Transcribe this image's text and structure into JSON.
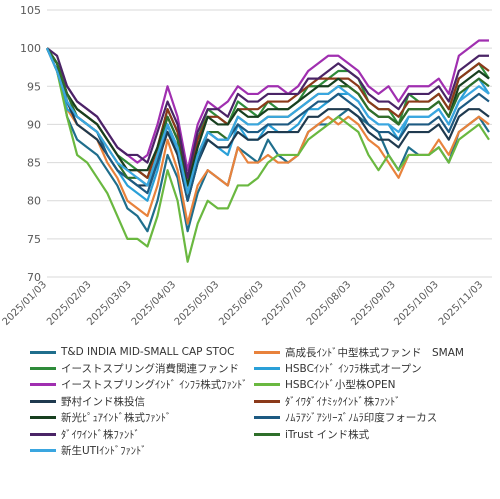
{
  "chart_data": {
    "type": "line",
    "title": "",
    "xlabel": "",
    "ylabel": "",
    "ylim": [
      70,
      105
    ],
    "yticks": [
      70,
      75,
      80,
      85,
      90,
      95,
      100,
      105
    ],
    "grid": "horizontal",
    "legend_position": "bottom",
    "x_tick_labels": [
      "2025/01/03",
      "2025/02/03",
      "2025/03/03",
      "2025/04/03",
      "2025/05/03",
      "2025/06/03",
      "2025/07/03",
      "2025/08/03",
      "2025/09/03",
      "2025/10/03",
      "2025/11/03"
    ],
    "x_tick_positions": [
      0,
      4.4286,
      8.4286,
      12.8571,
      17.1429,
      21.5714,
      25.8571,
      30.2857,
      34.7143,
      39.0,
      43.4286
    ],
    "x_range": [
      0,
      44.3
    ],
    "series": [
      {
        "name": "T&D INDIA MID-SMALL CAP STOC",
        "color": "#1f6e8c",
        "values": [
          100,
          98,
          91,
          88,
          87,
          86,
          84,
          82,
          79,
          78,
          76,
          80,
          86,
          83,
          76,
          81,
          84,
          83,
          82,
          87,
          86,
          85,
          88,
          86,
          85,
          86,
          89,
          90,
          90,
          91,
          92,
          91,
          90,
          89,
          86,
          84,
          87,
          86,
          86,
          87,
          85,
          89,
          90,
          91,
          89
        ]
      },
      {
        "name": "高成長ｲﾝﾄﾞ中型株式ファンド　SMAM",
        "color": "#e8823c",
        "values": [
          100,
          97,
          92,
          90,
          89,
          88,
          85,
          83,
          80,
          79,
          78,
          82,
          88,
          84,
          77,
          82,
          84,
          83,
          82,
          87,
          85,
          85,
          86,
          85,
          85,
          86,
          89,
          90,
          91,
          90,
          91,
          90,
          88,
          87,
          85,
          83,
          86,
          86,
          86,
          88,
          86,
          89,
          90,
          91,
          90
        ]
      },
      {
        "name": "イーストスプリング消費関連ファンド",
        "color": "#2e8b3a",
        "values": [
          100,
          98,
          94,
          92,
          91,
          90,
          88,
          86,
          85,
          84,
          83,
          87,
          92,
          89,
          82,
          88,
          92,
          91,
          90,
          93,
          92,
          91,
          93,
          92,
          92,
          93,
          95,
          95,
          96,
          97,
          97,
          96,
          93,
          92,
          92,
          90,
          94,
          93,
          93,
          94,
          92,
          96,
          97,
          98,
          96
        ]
      },
      {
        "name": "HSBCｲﾝﾄﾞ ｲﾝﾌﾗ株式オープン",
        "color": "#2aa0d8",
        "values": [
          100,
          97,
          92,
          91,
          90,
          89,
          86,
          84,
          82,
          81,
          80,
          84,
          90,
          86,
          80,
          85,
          88,
          87,
          86,
          90,
          88,
          88,
          90,
          89,
          89,
          90,
          92,
          92,
          93,
          94,
          94,
          93,
          91,
          90,
          90,
          88,
          91,
          91,
          91,
          92,
          90,
          93,
          95,
          96,
          94
        ]
      },
      {
        "name": "イーストスプリングｲﾝﾄﾞ ｲﾝﾌﾗ株式ﾌｧﾝﾄﾞ",
        "color": "#a02fb0",
        "values": [
          100,
          98,
          95,
          93,
          92,
          91,
          89,
          87,
          86,
          85,
          86,
          90,
          95,
          91,
          84,
          90,
          93,
          92,
          93,
          95,
          94,
          94,
          95,
          95,
          94,
          95,
          97,
          98,
          99,
          99,
          98,
          97,
          95,
          94,
          95,
          93,
          95,
          95,
          95,
          96,
          94,
          99,
          100,
          101,
          101
        ]
      },
      {
        "name": "HSBCｲﾝﾄﾞ小型株OPEN",
        "color": "#6ab840",
        "values": [
          100,
          97,
          91,
          86,
          85,
          83,
          81,
          78,
          75,
          75,
          74,
          78,
          84,
          80,
          72,
          77,
          80,
          79,
          79,
          82,
          82,
          83,
          85,
          86,
          86,
          86,
          88,
          89,
          90,
          91,
          90,
          89,
          86,
          84,
          86,
          84,
          86,
          86,
          86,
          87,
          85,
          88,
          89,
          90,
          88
        ]
      },
      {
        "name": "野村インド株投信",
        "color": "#1f3a4f",
        "values": [
          100,
          98,
          93,
          90,
          89,
          88,
          86,
          84,
          83,
          82,
          82,
          85,
          89,
          86,
          80,
          85,
          88,
          87,
          87,
          89,
          88,
          88,
          89,
          89,
          89,
          89,
          91,
          91,
          92,
          92,
          92,
          91,
          89,
          88,
          88,
          87,
          89,
          89,
          89,
          90,
          88,
          91,
          92,
          92,
          91
        ]
      },
      {
        "name": "ﾀﾞｲﾜﾀﾞｲﾅﾐｯｸｲﾝﾄﾞ株ﾌｧﾝﾄﾞ",
        "color": "#8b3a1a",
        "values": [
          100,
          98,
          94,
          92,
          91,
          90,
          88,
          86,
          84,
          84,
          83,
          87,
          92,
          89,
          82,
          88,
          91,
          91,
          90,
          92,
          92,
          92,
          93,
          93,
          93,
          94,
          95,
          96,
          96,
          96,
          96,
          95,
          93,
          92,
          92,
          91,
          93,
          93,
          93,
          94,
          92,
          96,
          97,
          98,
          97
        ]
      },
      {
        "name": "新光ﾋﾟｭｱｲﾝﾄﾞ株式ﾌｧﾝﾄﾞ",
        "color": "#173f1f",
        "values": [
          100,
          98,
          94,
          92,
          91,
          90,
          88,
          86,
          84,
          84,
          84,
          87,
          91,
          88,
          82,
          87,
          91,
          90,
          90,
          92,
          91,
          91,
          92,
          92,
          92,
          93,
          94,
          95,
          95,
          96,
          95,
          94,
          92,
          91,
          91,
          90,
          92,
          92,
          92,
          93,
          91,
          95,
          96,
          97,
          96
        ]
      },
      {
        "name": "ﾉﾑﾗｱｼﾞｱｼﾘｰｽﾞﾉﾑﾗ印度フォーカス",
        "color": "#1d5a82",
        "values": [
          100,
          97,
          93,
          91,
          90,
          89,
          86,
          84,
          83,
          82,
          81,
          85,
          90,
          87,
          80,
          85,
          89,
          88,
          88,
          90,
          89,
          89,
          90,
          90,
          90,
          91,
          92,
          93,
          93,
          94,
          93,
          92,
          90,
          89,
          89,
          88,
          90,
          90,
          90,
          91,
          89,
          92,
          93,
          94,
          93
        ]
      },
      {
        "name": "ﾀﾞｲﾜｲﾝﾄﾞ株ﾌｧﾝﾄﾞ",
        "color": "#4a2466",
        "values": [
          100,
          99,
          95,
          93,
          92,
          91,
          89,
          87,
          86,
          86,
          85,
          89,
          93,
          90,
          83,
          89,
          92,
          92,
          91,
          94,
          93,
          93,
          94,
          94,
          94,
          94,
          96,
          96,
          97,
          98,
          97,
          96,
          94,
          93,
          93,
          92,
          94,
          94,
          94,
          95,
          93,
          97,
          98,
          99,
          99
        ]
      },
      {
        "name": "iTrust インド株式",
        "color": "#2f6f2a",
        "values": [
          100,
          98,
          94,
          91,
          90,
          89,
          87,
          85,
          83,
          83,
          82,
          86,
          91,
          88,
          81,
          86,
          89,
          89,
          88,
          91,
          90,
          90,
          91,
          91,
          91,
          92,
          93,
          94,
          94,
          95,
          95,
          94,
          92,
          91,
          91,
          90,
          92,
          92,
          92,
          93,
          91,
          94,
          95,
          96,
          95
        ]
      },
      {
        "name": "新生UTIｲﾝﾄﾞﾌｧﾝﾄﾞ",
        "color": "#3aa6e0",
        "values": [
          100,
          97,
          93,
          91,
          90,
          89,
          87,
          85,
          84,
          83,
          82,
          86,
          90,
          87,
          81,
          86,
          89,
          88,
          88,
          91,
          90,
          90,
          91,
          91,
          91,
          92,
          93,
          94,
          94,
          95,
          94,
          93,
          91,
          90,
          90,
          89,
          91,
          91,
          91,
          92,
          90,
          93,
          94,
          95,
          94
        ]
      }
    ]
  }
}
